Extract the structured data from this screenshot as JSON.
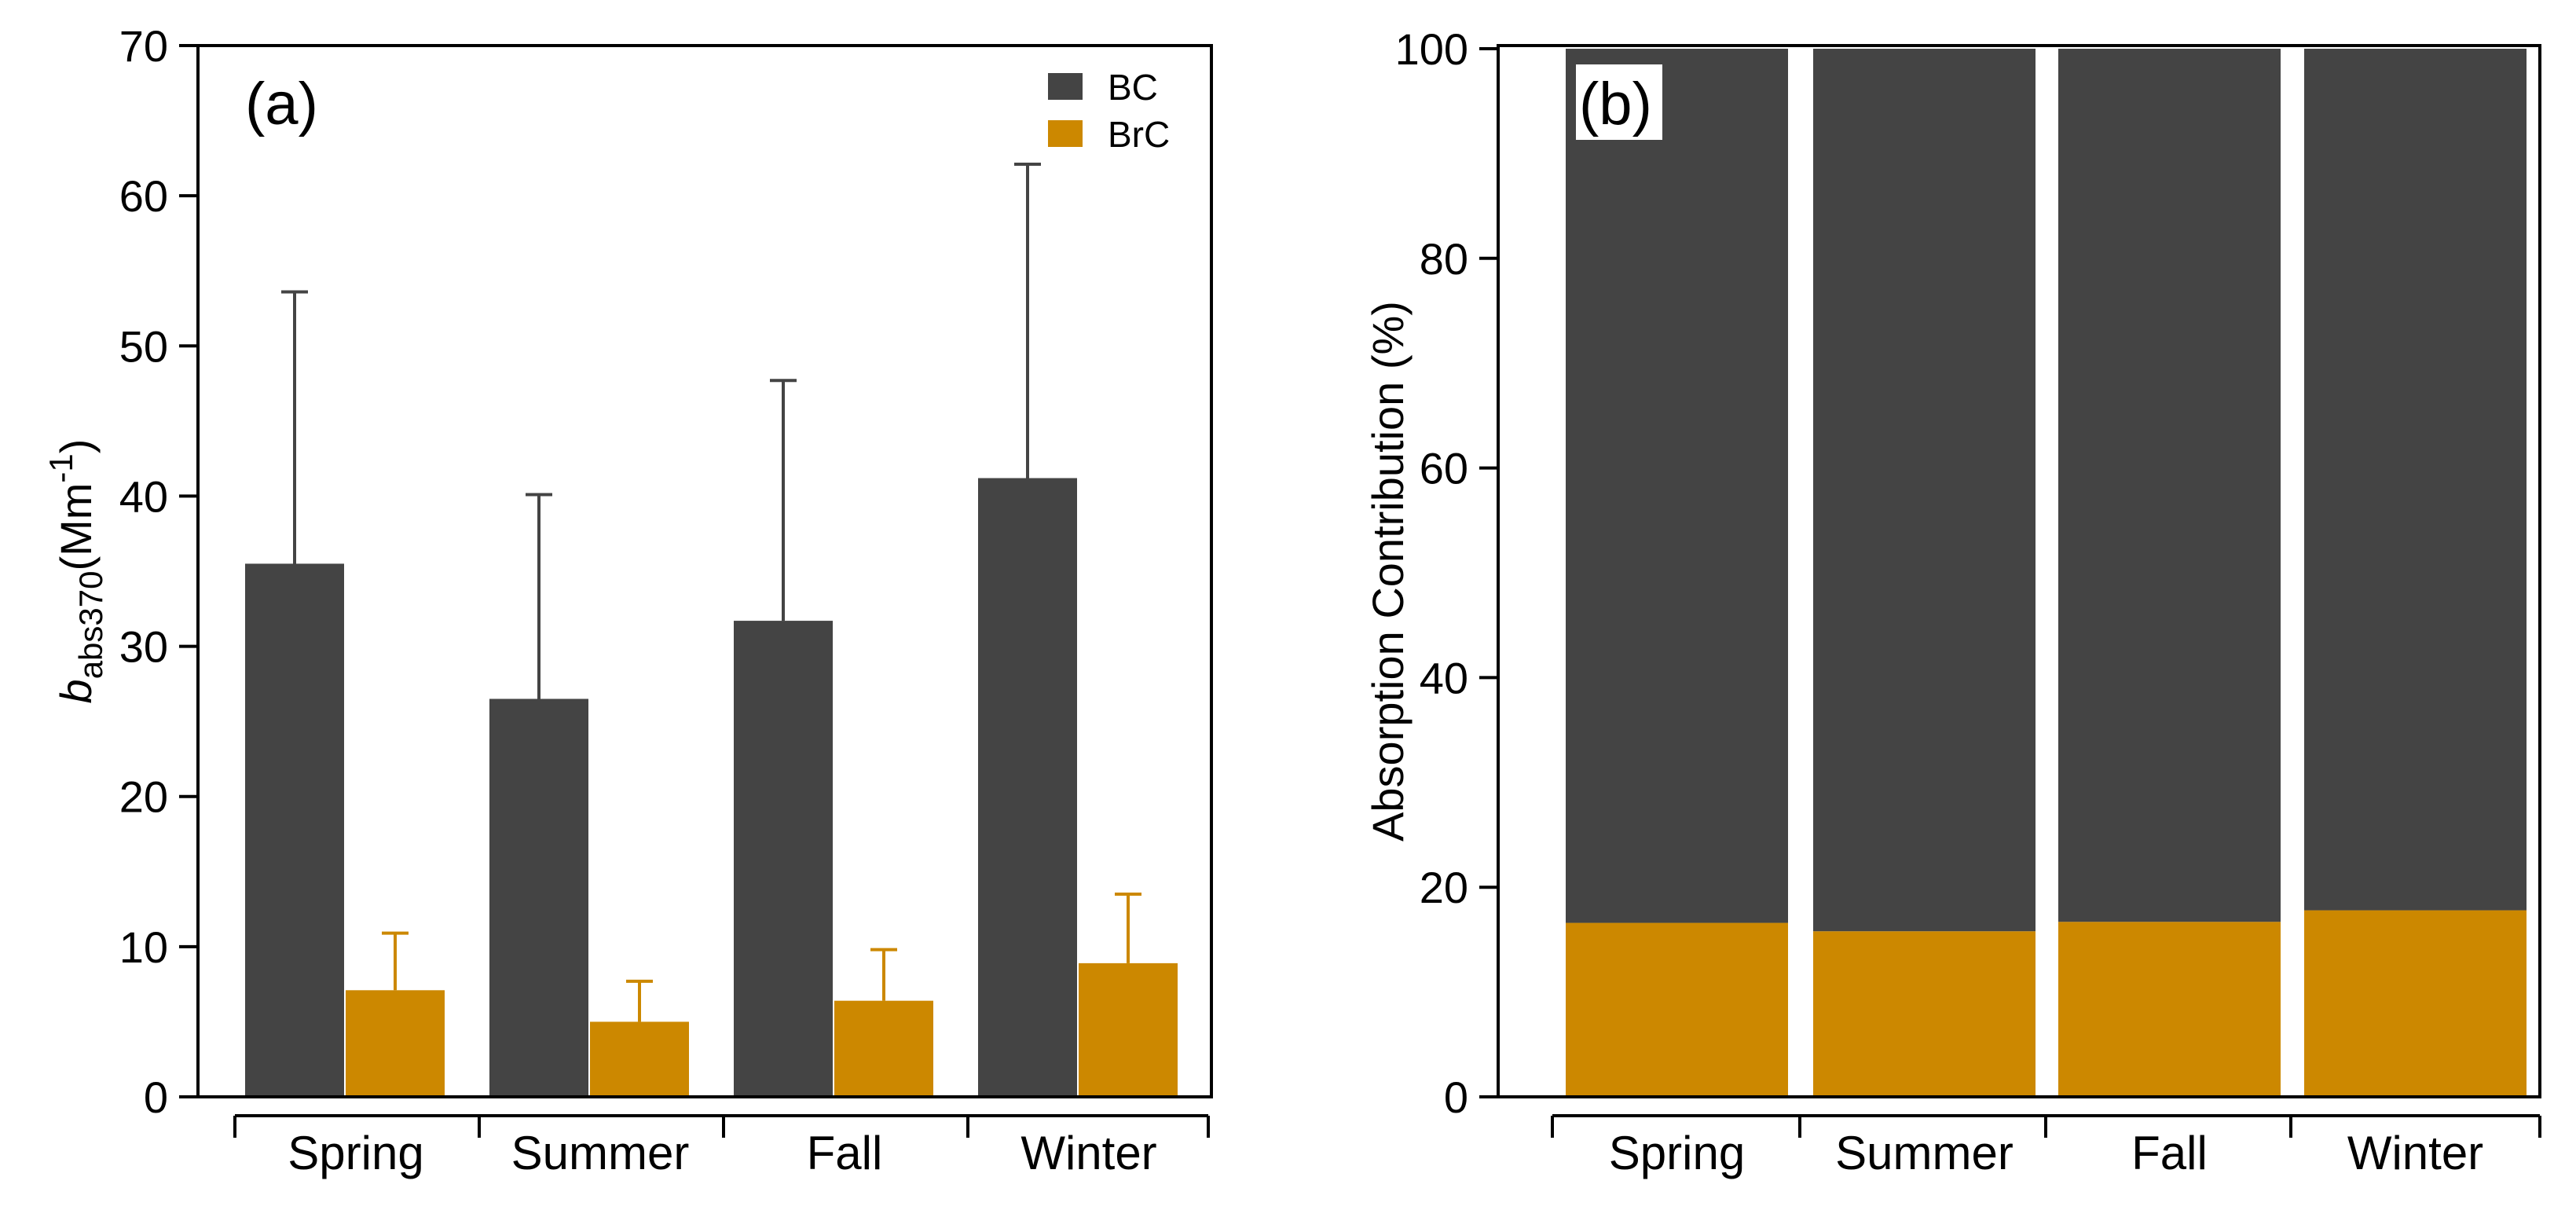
{
  "chart_data": [
    {
      "panel": "(a)",
      "type": "bar",
      "ylabel": {
        "base": "b",
        "subscript": "abs370",
        "unit": "(Mm",
        "exponent": "-1",
        "close": ")"
      },
      "ylim": [
        0,
        70
      ],
      "yticks": [
        "0",
        "10",
        "20",
        "30",
        "40",
        "50",
        "60",
        "70"
      ],
      "categories": [
        "Spring",
        "Summer",
        "Fall",
        "Winter"
      ],
      "series": [
        {
          "name": "BC",
          "color": "#444444",
          "values": [
            35.5,
            26.5,
            31.7,
            41.2
          ],
          "error_upper": [
            53.6,
            40.1,
            47.7,
            62.1
          ]
        },
        {
          "name": "BrC",
          "color": "#CC8800",
          "values": [
            7.1,
            5.0,
            6.4,
            8.9
          ],
          "error_upper": [
            10.9,
            7.7,
            9.8,
            13.5
          ]
        }
      ],
      "legend": [
        "BC",
        "BrC"
      ],
      "legend_position": "top-right",
      "grid": false
    },
    {
      "panel": "(b)",
      "type": "bar",
      "stacked": true,
      "ylabel": "Absorption Contribution (%)",
      "ylim": [
        0,
        100
      ],
      "yticks": [
        "0",
        "20",
        "40",
        "60",
        "80",
        "100"
      ],
      "categories": [
        "Spring",
        "Summer",
        "Fall",
        "Winter"
      ],
      "series": [
        {
          "name": "BrC",
          "color": "#CC8800",
          "values": [
            16.6,
            15.8,
            16.7,
            17.8
          ]
        },
        {
          "name": "BC",
          "color": "#444444",
          "values": [
            83.4,
            84.2,
            83.3,
            82.2
          ]
        }
      ],
      "grid": false
    }
  ]
}
